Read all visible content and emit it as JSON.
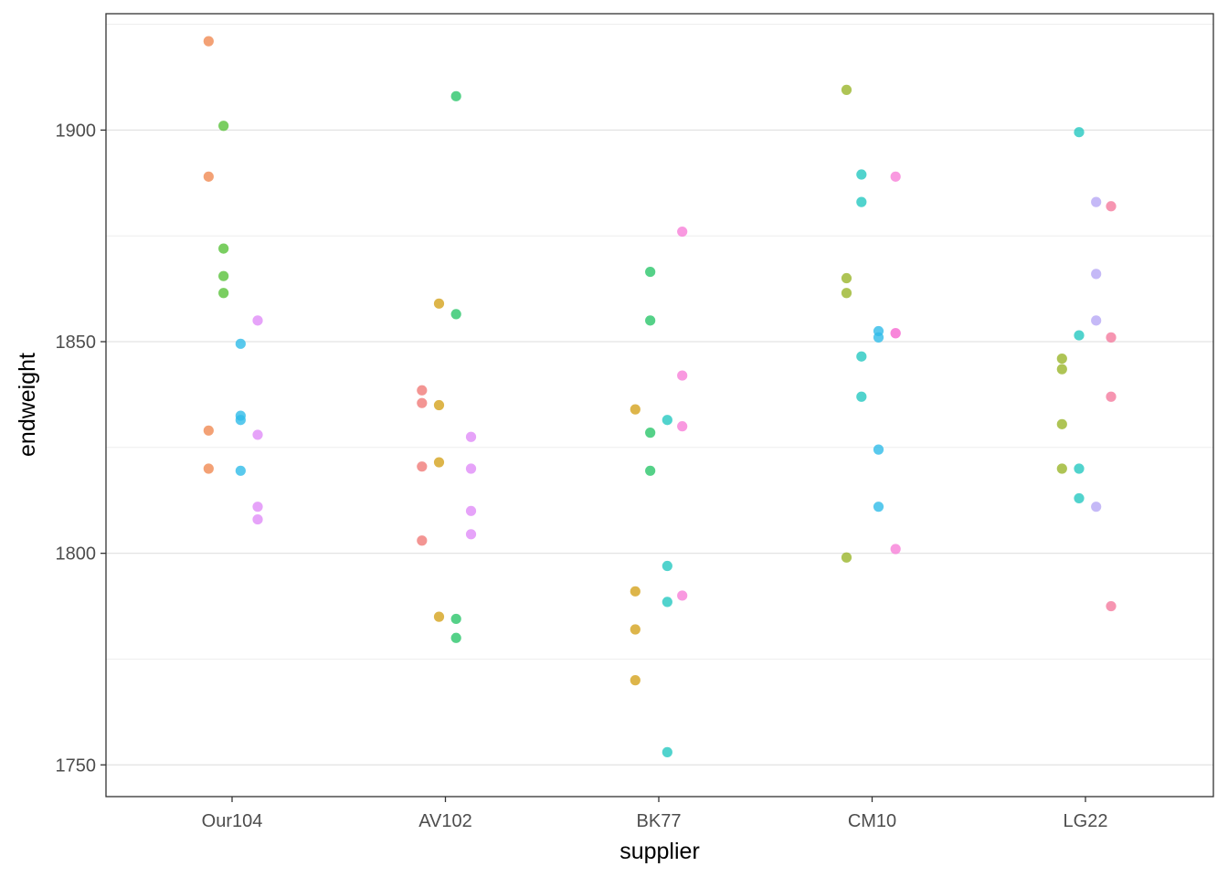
{
  "chart_data": {
    "type": "scatter",
    "xlabel": "supplier",
    "ylabel": "endweight",
    "categories": [
      "Our104",
      "AV102",
      "BK77",
      "CM10",
      "LG22"
    ],
    "ylim": [
      1742.5,
      1927.5
    ],
    "y_ticks": [
      1750,
      1800,
      1850,
      1900
    ],
    "grid": true,
    "legend": "none",
    "point_colors": [
      "#F08A52",
      "#D4A21D",
      "#9AB52B",
      "#59C23A",
      "#2AC56A",
      "#25C8C0",
      "#2FBCE8",
      "#6BA6F6",
      "#B7A7F5",
      "#E08CF7",
      "#F77FD8",
      "#F47A9E",
      "#F07A78"
    ],
    "points": [
      {
        "cat": 0,
        "dx": -0.11,
        "y": 1921,
        "color": "#F08A52"
      },
      {
        "cat": 0,
        "dx": -0.11,
        "y": 1889,
        "color": "#F08A52"
      },
      {
        "cat": 0,
        "dx": -0.11,
        "y": 1829,
        "color": "#F08A52"
      },
      {
        "cat": 0,
        "dx": -0.11,
        "y": 1820,
        "color": "#F08A52"
      },
      {
        "cat": 0,
        "dx": -0.04,
        "y": 1901,
        "color": "#59C23A"
      },
      {
        "cat": 0,
        "dx": -0.04,
        "y": 1872,
        "color": "#59C23A"
      },
      {
        "cat": 0,
        "dx": -0.04,
        "y": 1865.5,
        "color": "#59C23A"
      },
      {
        "cat": 0,
        "dx": -0.04,
        "y": 1861.5,
        "color": "#59C23A"
      },
      {
        "cat": 0,
        "dx": 0.04,
        "y": 1849.5,
        "color": "#2FBCE8"
      },
      {
        "cat": 0,
        "dx": 0.04,
        "y": 1832.5,
        "color": "#2FBCE8"
      },
      {
        "cat": 0,
        "dx": 0.04,
        "y": 1831.5,
        "color": "#2FBCE8"
      },
      {
        "cat": 0,
        "dx": 0.04,
        "y": 1819.5,
        "color": "#2FBCE8"
      },
      {
        "cat": 0,
        "dx": 0.12,
        "y": 1855,
        "color": "#E08CF7"
      },
      {
        "cat": 0,
        "dx": 0.12,
        "y": 1828,
        "color": "#E08CF7"
      },
      {
        "cat": 0,
        "dx": 0.12,
        "y": 1811,
        "color": "#E08CF7"
      },
      {
        "cat": 0,
        "dx": 0.12,
        "y": 1808,
        "color": "#E08CF7"
      },
      {
        "cat": 1,
        "dx": -0.11,
        "y": 1838.5,
        "color": "#F07A78"
      },
      {
        "cat": 1,
        "dx": -0.11,
        "y": 1835.5,
        "color": "#F07A78"
      },
      {
        "cat": 1,
        "dx": -0.11,
        "y": 1820.5,
        "color": "#F07A78"
      },
      {
        "cat": 1,
        "dx": -0.11,
        "y": 1803,
        "color": "#F07A78"
      },
      {
        "cat": 1,
        "dx": -0.03,
        "y": 1859,
        "color": "#D4A21D"
      },
      {
        "cat": 1,
        "dx": -0.03,
        "y": 1835,
        "color": "#D4A21D"
      },
      {
        "cat": 1,
        "dx": -0.03,
        "y": 1821.5,
        "color": "#D4A21D"
      },
      {
        "cat": 1,
        "dx": -0.03,
        "y": 1785,
        "color": "#D4A21D"
      },
      {
        "cat": 1,
        "dx": 0.05,
        "y": 1908,
        "color": "#2AC56A"
      },
      {
        "cat": 1,
        "dx": 0.05,
        "y": 1856.5,
        "color": "#2AC56A"
      },
      {
        "cat": 1,
        "dx": 0.05,
        "y": 1784.5,
        "color": "#2AC56A"
      },
      {
        "cat": 1,
        "dx": 0.05,
        "y": 1780,
        "color": "#2AC56A"
      },
      {
        "cat": 1,
        "dx": 0.12,
        "y": 1827.5,
        "color": "#E08CF7"
      },
      {
        "cat": 1,
        "dx": 0.12,
        "y": 1820,
        "color": "#E08CF7"
      },
      {
        "cat": 1,
        "dx": 0.12,
        "y": 1810,
        "color": "#E08CF7"
      },
      {
        "cat": 1,
        "dx": 0.12,
        "y": 1804.5,
        "color": "#E08CF7"
      },
      {
        "cat": 2,
        "dx": -0.11,
        "y": 1834,
        "color": "#D4A21D"
      },
      {
        "cat": 2,
        "dx": -0.11,
        "y": 1791,
        "color": "#D4A21D"
      },
      {
        "cat": 2,
        "dx": -0.11,
        "y": 1782,
        "color": "#D4A21D"
      },
      {
        "cat": 2,
        "dx": -0.11,
        "y": 1770,
        "color": "#D4A21D"
      },
      {
        "cat": 2,
        "dx": -0.04,
        "y": 1866.5,
        "color": "#2AC56A"
      },
      {
        "cat": 2,
        "dx": -0.04,
        "y": 1855,
        "color": "#2AC56A"
      },
      {
        "cat": 2,
        "dx": -0.04,
        "y": 1828.5,
        "color": "#2AC56A"
      },
      {
        "cat": 2,
        "dx": -0.04,
        "y": 1819.5,
        "color": "#2AC56A"
      },
      {
        "cat": 2,
        "dx": 0.04,
        "y": 1831.5,
        "color": "#25C8C0"
      },
      {
        "cat": 2,
        "dx": 0.04,
        "y": 1797,
        "color": "#25C8C0"
      },
      {
        "cat": 2,
        "dx": 0.04,
        "y": 1788.5,
        "color": "#25C8C0"
      },
      {
        "cat": 2,
        "dx": 0.04,
        "y": 1753,
        "color": "#25C8C0"
      },
      {
        "cat": 2,
        "dx": 0.11,
        "y": 1876,
        "color": "#F77FD8"
      },
      {
        "cat": 2,
        "dx": 0.11,
        "y": 1842,
        "color": "#F77FD8"
      },
      {
        "cat": 2,
        "dx": 0.11,
        "y": 1830,
        "color": "#F77FD8"
      },
      {
        "cat": 2,
        "dx": 0.11,
        "y": 1790,
        "color": "#F77FD8"
      },
      {
        "cat": 3,
        "dx": -0.12,
        "y": 1909.5,
        "color": "#9AB52B"
      },
      {
        "cat": 3,
        "dx": -0.12,
        "y": 1865,
        "color": "#9AB52B"
      },
      {
        "cat": 3,
        "dx": -0.12,
        "y": 1861.5,
        "color": "#9AB52B"
      },
      {
        "cat": 3,
        "dx": -0.12,
        "y": 1799,
        "color": "#9AB52B"
      },
      {
        "cat": 3,
        "dx": -0.05,
        "y": 1889.5,
        "color": "#25C8C0"
      },
      {
        "cat": 3,
        "dx": -0.05,
        "y": 1883,
        "color": "#25C8C0"
      },
      {
        "cat": 3,
        "dx": -0.05,
        "y": 1846.5,
        "color": "#25C8C0"
      },
      {
        "cat": 3,
        "dx": -0.05,
        "y": 1837,
        "color": "#25C8C0"
      },
      {
        "cat": 3,
        "dx": 0.03,
        "y": 1852.5,
        "color": "#2FBCE8"
      },
      {
        "cat": 3,
        "dx": 0.03,
        "y": 1851,
        "color": "#2FBCE8"
      },
      {
        "cat": 3,
        "dx": 0.03,
        "y": 1824.5,
        "color": "#2FBCE8"
      },
      {
        "cat": 3,
        "dx": 0.03,
        "y": 1811,
        "color": "#2FBCE8"
      },
      {
        "cat": 3,
        "dx": 0.11,
        "y": 1889,
        "color": "#F77FD8"
      },
      {
        "cat": 3,
        "dx": 0.11,
        "y": 1852,
        "color": "#F77FD8"
      },
      {
        "cat": 3,
        "dx": 0.11,
        "y": 1852,
        "color": "#F77FD8"
      },
      {
        "cat": 3,
        "dx": 0.11,
        "y": 1801,
        "color": "#F77FD8"
      },
      {
        "cat": 4,
        "dx": -0.11,
        "y": 1846,
        "color": "#9AB52B"
      },
      {
        "cat": 4,
        "dx": -0.11,
        "y": 1843.5,
        "color": "#9AB52B"
      },
      {
        "cat": 4,
        "dx": -0.11,
        "y": 1830.5,
        "color": "#9AB52B"
      },
      {
        "cat": 4,
        "dx": -0.11,
        "y": 1820,
        "color": "#9AB52B"
      },
      {
        "cat": 4,
        "dx": -0.03,
        "y": 1899.5,
        "color": "#25C8C0"
      },
      {
        "cat": 4,
        "dx": -0.03,
        "y": 1851.5,
        "color": "#25C8C0"
      },
      {
        "cat": 4,
        "dx": -0.03,
        "y": 1820,
        "color": "#25C8C0"
      },
      {
        "cat": 4,
        "dx": -0.03,
        "y": 1813,
        "color": "#25C8C0"
      },
      {
        "cat": 4,
        "dx": 0.05,
        "y": 1883,
        "color": "#B7A7F5"
      },
      {
        "cat": 4,
        "dx": 0.05,
        "y": 1866,
        "color": "#B7A7F5"
      },
      {
        "cat": 4,
        "dx": 0.05,
        "y": 1855,
        "color": "#B7A7F5"
      },
      {
        "cat": 4,
        "dx": 0.05,
        "y": 1811,
        "color": "#B7A7F5"
      },
      {
        "cat": 4,
        "dx": 0.12,
        "y": 1882,
        "color": "#F47A9E"
      },
      {
        "cat": 4,
        "dx": 0.12,
        "y": 1851,
        "color": "#F47A9E"
      },
      {
        "cat": 4,
        "dx": 0.12,
        "y": 1837,
        "color": "#F47A9E"
      },
      {
        "cat": 4,
        "dx": 0.12,
        "y": 1787.5,
        "color": "#F47A9E"
      }
    ]
  }
}
